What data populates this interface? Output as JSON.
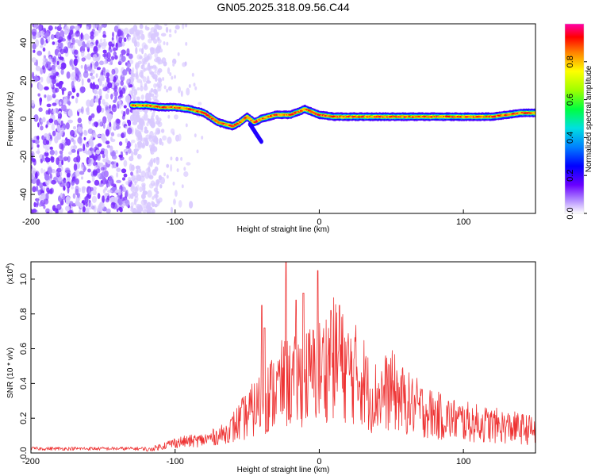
{
  "title": "GN05.2025.318.09.56.C44",
  "chart_data": [
    {
      "type": "heatmap",
      "xlabel": "Height of straight line (km)",
      "ylabel": "Frequency (Hz)",
      "xlim": [
        -200,
        150
      ],
      "ylim": [
        -50,
        50
      ],
      "x_ticks": [
        -200,
        -100,
        0,
        100
      ],
      "y_ticks": [
        40,
        20,
        0,
        -20,
        -40
      ],
      "colorbar_label": "Normalized spectral amplitude",
      "colorbar_ticks": [
        "0.0",
        "0.2",
        "0.4",
        "0.6",
        "0.8"
      ],
      "colorbar_tick_values": [
        0,
        0.2,
        0.4,
        0.6,
        0.8
      ],
      "colorbar_range": [
        0,
        1
      ],
      "ridge": {
        "x": [
          -130,
          -120,
          -110,
          -100,
          -90,
          -80,
          -70,
          -60,
          -55,
          -50,
          -45,
          -40,
          -35,
          -30,
          -20,
          -10,
          0,
          10,
          20,
          40,
          60,
          80,
          100,
          120,
          140,
          150
        ],
        "freq": [
          7,
          7,
          6,
          6,
          5,
          3,
          -2,
          -4,
          -2,
          1,
          -2,
          0,
          1,
          2,
          2,
          5,
          2,
          1,
          1,
          1,
          1,
          1,
          1,
          1,
          3,
          3
        ]
      }
    },
    {
      "type": "line",
      "xlabel": "Height of straight line (km)",
      "ylabel": "SNR (10 * v/v)",
      "y_multiplier": "(x10",
      "y_multiplier_exp": "4",
      "xlim": [
        -200,
        150
      ],
      "ylim": [
        0,
        1.1
      ],
      "x_ticks": [
        -200,
        -100,
        0,
        100
      ],
      "y_ticks": [
        "0.0",
        "0.2",
        "0.4",
        "0.6",
        "0.8",
        "1.0"
      ],
      "y_tick_values": [
        0,
        0.2,
        0.4,
        0.6,
        0.8,
        1.0
      ],
      "color": "#ee3333",
      "envelope": {
        "x": [
          -200,
          -130,
          -120,
          -110,
          -100,
          -80,
          -65,
          -55,
          -50,
          -45,
          -40,
          -35,
          -30,
          -25,
          -20,
          -10,
          0,
          10,
          15,
          20,
          30,
          35,
          40,
          50,
          60,
          80,
          100,
          120,
          150
        ],
        "y": [
          0.02,
          0.02,
          0.02,
          0.05,
          0.08,
          0.1,
          0.15,
          0.25,
          0.3,
          0.35,
          0.4,
          0.45,
          0.5,
          0.55,
          0.55,
          0.6,
          0.65,
          0.75,
          0.7,
          0.65,
          0.6,
          0.45,
          0.45,
          0.5,
          0.4,
          0.3,
          0.25,
          0.22,
          0.18
        ]
      },
      "spikes": [
        {
          "x": -40,
          "y": 0.85
        },
        {
          "x": -38,
          "y": 0.72
        },
        {
          "x": -23,
          "y": 1.1
        },
        {
          "x": -16,
          "y": 0.88
        },
        {
          "x": -11,
          "y": 0.92
        },
        {
          "x": -1,
          "y": 1.05
        },
        {
          "x": 8,
          "y": 0.82
        },
        {
          "x": 14,
          "y": 0.85
        }
      ]
    }
  ]
}
